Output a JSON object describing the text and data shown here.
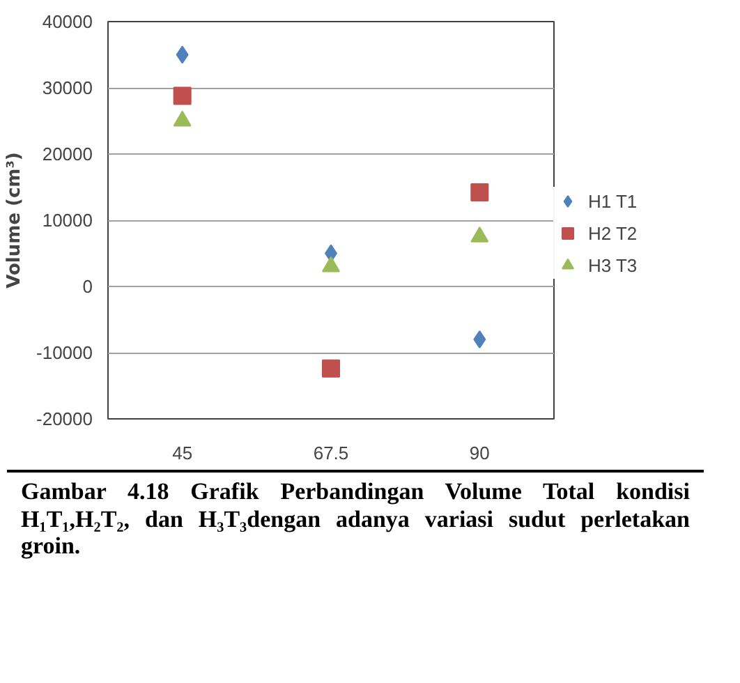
{
  "chart_data": {
    "type": "scatter",
    "ylabel": "Volume (cm³)",
    "categories": [
      "45",
      "67.5",
      "90"
    ],
    "series": [
      {
        "name": "H1 T1",
        "color": "#4f81bd",
        "marker": "diamond",
        "values": [
          35000,
          5000,
          -8000
        ]
      },
      {
        "name": "H2 T2",
        "color": "#c0504d",
        "marker": "square",
        "values": [
          28800,
          -12400,
          14200
        ]
      },
      {
        "name": "H3 T3",
        "color": "#9bbb59",
        "marker": "triangle",
        "values": [
          25000,
          3000,
          7500
        ]
      }
    ],
    "ylim": [
      -20000,
      40000
    ],
    "yticks": [
      -20000,
      -10000,
      0,
      10000,
      20000,
      30000,
      40000
    ],
    "grid": "y",
    "legend": "right",
    "annotations": [
      "Gambar 4.18 Grafik Perbandingan Volume Total kondisi H₁T₁,H₂T₂, dan H₃T₃dengan adanya variasi sudut perletakan groin."
    ]
  }
}
